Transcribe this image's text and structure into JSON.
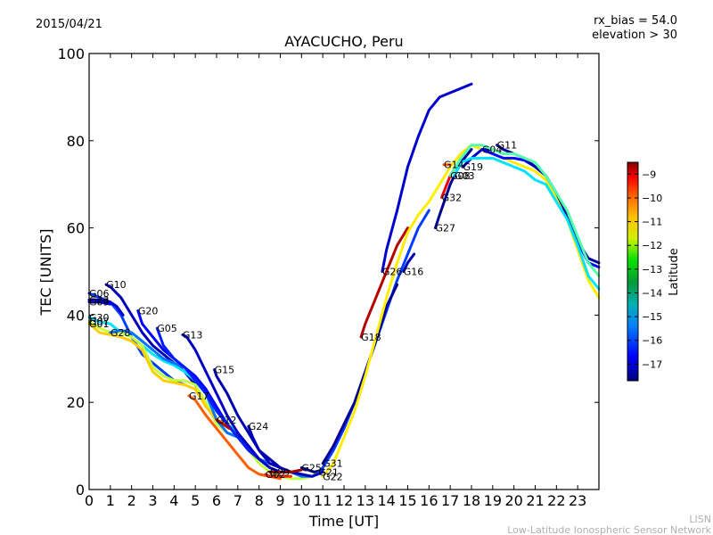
{
  "chart_data": {
    "type": "line",
    "title": "AYACUCHO, Peru",
    "date": "2015/04/21",
    "annotations": [
      "rx_bias = 54.0",
      "elevation > 30"
    ],
    "xlabel": "Time [UT]",
    "ylabel": "TEC [UNITS]",
    "xlim": [
      0,
      24
    ],
    "ylim": [
      0,
      100
    ],
    "xticks": [
      "0",
      "1",
      "2",
      "3",
      "4",
      "5",
      "6",
      "7",
      "8",
      "9",
      "10",
      "11",
      "12",
      "13",
      "14",
      "15",
      "16",
      "17",
      "18",
      "19",
      "20",
      "21",
      "22",
      "23"
    ],
    "yticks": [
      "0",
      "20",
      "40",
      "60",
      "80",
      "100"
    ],
    "grid": false,
    "colorbar": {
      "label": "Latitude",
      "range": [
        -17.7,
        -8.5
      ],
      "ticks": [
        "-9",
        "-10",
        "-11",
        "-12",
        "-13",
        "-14",
        "-15",
        "-16",
        "-17"
      ],
      "colormap": "jet"
    },
    "series": [
      {
        "name": "G06",
        "lat": -16.0,
        "x": [
          0,
          0.5,
          1,
          1.5,
          2,
          2.5,
          3,
          3.5,
          4,
          4.5
        ],
        "y": [
          45,
          44,
          43,
          40,
          35,
          31,
          29,
          27,
          25,
          24
        ]
      },
      {
        "name": "G10",
        "lat": -17.2,
        "x": [
          0.8,
          1,
          1.5,
          2,
          2.5,
          3,
          3.5,
          4,
          4.5,
          5,
          5.5
        ],
        "y": [
          47,
          46.5,
          44,
          40,
          36,
          33,
          31,
          29,
          27,
          24,
          19
        ]
      },
      {
        "name": "G23",
        "lat": -17.0,
        "x": [
          0,
          0.5,
          1,
          1.3,
          1.6
        ],
        "y": [
          43.5,
          43.5,
          43,
          42,
          40
        ]
      },
      {
        "name": "G09",
        "lat": -16.5,
        "x": [
          0,
          0.5,
          1
        ],
        "y": [
          43,
          43,
          42.5
        ]
      },
      {
        "name": "G30",
        "lat": -14.5,
        "x": [
          0,
          0.5,
          1,
          1.5,
          2,
          2.5,
          3,
          3.5,
          4,
          4.5,
          5,
          5.5,
          6,
          6.5,
          7
        ],
        "y": [
          39.5,
          38.5,
          38,
          36,
          35,
          33,
          31,
          29.5,
          28.5,
          27,
          25,
          22,
          18,
          15,
          13
        ]
      },
      {
        "name": "G07",
        "lat": -12.5,
        "x": [
          0,
          0.5,
          1,
          1.5,
          2,
          2.5,
          3,
          3.5,
          4,
          4.5,
          5,
          5.5,
          6,
          6.5,
          7,
          7.5,
          8,
          8.5,
          9,
          9.5,
          10,
          10.5,
          11
        ],
        "y": [
          38.5,
          37,
          36,
          36,
          35,
          33,
          28,
          26,
          25,
          25,
          24,
          20,
          15,
          13,
          12,
          9,
          6,
          4,
          3,
          2.5,
          2.5,
          3,
          5
        ]
      },
      {
        "name": "G01",
        "lat": -11.5,
        "x": [
          0,
          0.5,
          1,
          1.5,
          2,
          2.5,
          3,
          3.5,
          4,
          4.5,
          5,
          5.5,
          6,
          6.5
        ],
        "y": [
          38,
          36,
          35.5,
          35,
          34,
          32,
          27,
          25,
          24.5,
          24,
          23,
          19,
          16,
          15
        ]
      },
      {
        "name": "G28",
        "lat": -15.5,
        "x": [
          1,
          1.5,
          2,
          2.5,
          3,
          3.5,
          4,
          4.5,
          5,
          5.5,
          6,
          6.5,
          7,
          7.5,
          8,
          8.5,
          9,
          9.5,
          10,
          10.5,
          11
        ],
        "y": [
          36,
          36.5,
          36,
          34,
          32,
          30,
          29,
          28,
          26,
          22,
          16,
          13,
          12,
          10,
          7,
          6,
          5,
          4,
          3,
          3,
          4
        ]
      },
      {
        "name": "G20",
        "lat": -16.5,
        "x": [
          2.3,
          2.5,
          3,
          3.5,
          4,
          4.5,
          5,
          5.5,
          6,
          6.5,
          7
        ],
        "y": [
          41,
          38,
          35,
          32,
          30,
          28,
          26,
          23,
          19,
          15,
          12
        ]
      },
      {
        "name": "G05",
        "lat": -16.3,
        "x": [
          3.2,
          3.5,
          4,
          4.5,
          5,
          5.5,
          6,
          6.5,
          7,
          7.5,
          8,
          8.5,
          9
        ],
        "y": [
          37,
          33,
          30,
          28,
          25,
          22,
          18,
          15,
          12,
          9,
          7,
          5,
          4
        ]
      },
      {
        "name": "G13",
        "lat": -17.1,
        "x": [
          4.4,
          4.6,
          5,
          5.5,
          6,
          6.5,
          7,
          7.5,
          8,
          8.5,
          9
        ],
        "y": [
          35.5,
          35,
          32,
          27,
          22,
          17,
          13,
          10,
          7,
          5,
          4
        ]
      },
      {
        "name": "G15",
        "lat": -17.3,
        "x": [
          5.9,
          6,
          6.5,
          7,
          7.5,
          8,
          8.5,
          9,
          9.5,
          10
        ],
        "y": [
          27.5,
          26,
          22,
          17,
          13,
          9,
          7,
          5,
          4,
          3.5
        ]
      },
      {
        "name": "G17",
        "lat": -10.5,
        "x": [
          4.7,
          5,
          5.5,
          6,
          6.5,
          7,
          7.5,
          8,
          8.5,
          9
        ],
        "y": [
          21.5,
          20.5,
          17,
          14,
          11,
          8,
          5,
          3.5,
          3,
          2.5
        ]
      },
      {
        "name": "G12",
        "lat": -9.0,
        "x": [
          6,
          6.3,
          6.6
        ],
        "y": [
          16,
          15,
          14
        ]
      },
      {
        "name": "G24",
        "lat": -17.2,
        "x": [
          7.5,
          7.7,
          8,
          8.5,
          9,
          9.5,
          10,
          10.5,
          11
        ],
        "y": [
          14.5,
          12,
          9,
          6,
          5,
          4,
          3.5,
          3,
          4
        ]
      },
      {
        "name": "G29",
        "lat": -8.8,
        "x": [
          8.5,
          9,
          9.5,
          10
        ],
        "y": [
          4,
          4,
          4,
          4.5
        ]
      },
      {
        "name": "G02",
        "lat": -10.0,
        "x": [
          8.3,
          8.5,
          9,
          9.5
        ],
        "y": [
          3.5,
          3,
          3,
          3
        ]
      },
      {
        "name": "G25",
        "lat": -17.5,
        "x": [
          10,
          10.3,
          10.6,
          11
        ],
        "y": [
          5,
          4.5,
          4,
          4.5
        ]
      },
      {
        "name": "G21",
        "lat": -16.0,
        "x": [
          10.8,
          11,
          11.5,
          12,
          12.5,
          13,
          13.5,
          14,
          14.5,
          15,
          15.5,
          16
        ],
        "y": [
          4,
          5,
          9,
          14,
          20,
          27,
          34,
          41,
          48,
          54,
          60,
          64
        ]
      },
      {
        "name": "G31",
        "lat": -17.5,
        "x": [
          11,
          11.5,
          12,
          12.5,
          13,
          13.5,
          14,
          14.5
        ],
        "y": [
          6,
          10,
          15,
          20,
          27,
          34,
          42,
          47
        ]
      },
      {
        "name": "G18",
        "lat": -9.0,
        "x": [
          12.8,
          13,
          13.5,
          14,
          14.5,
          15
        ],
        "y": [
          35,
          38,
          44,
          50,
          56,
          60
        ]
      },
      {
        "name": "G26",
        "lat": -17.0,
        "x": [
          13.8,
          14,
          14.5,
          15,
          15.5,
          16,
          16.5,
          17,
          17.5,
          18
        ],
        "y": [
          50,
          55,
          64,
          74,
          81,
          87,
          90,
          91,
          92,
          93
        ]
      },
      {
        "name": "G22",
        "lat": -11.8,
        "x": [
          11,
          11.5,
          12,
          12.5,
          13,
          13.5,
          14,
          14.5,
          15,
          15.5,
          16,
          16.5,
          17,
          17.5,
          18,
          18.5,
          19,
          19.5,
          20,
          20.5,
          21,
          21.5,
          22,
          22.5,
          23,
          23.5,
          24
        ],
        "y": [
          3,
          6,
          12,
          18,
          26,
          35,
          44,
          52,
          59,
          63,
          66,
          70,
          74,
          77,
          79,
          78,
          77,
          76,
          75,
          74,
          73,
          71,
          67,
          62,
          55,
          48,
          44
        ]
      },
      {
        "name": "G16",
        "lat": -17.2,
        "x": [
          14.8,
          15,
          15.3
        ],
        "y": [
          50,
          52,
          54
        ]
      },
      {
        "name": "G27",
        "lat": -17.5,
        "x": [
          16.3,
          16.5,
          17,
          17.5,
          18
        ],
        "y": [
          60,
          63,
          70,
          75,
          78
        ]
      },
      {
        "name": "G32",
        "lat": -9.5,
        "x": [
          16.6,
          17,
          17.5
        ],
        "y": [
          67,
          72,
          76
        ]
      },
      {
        "name": "G14",
        "lat": -10.5,
        "x": [
          16.7,
          17
        ],
        "y": [
          74.5,
          74.5
        ]
      },
      {
        "name": "G19",
        "lat": -17.0,
        "x": [
          17.6,
          18,
          18.5,
          19
        ],
        "y": [
          74,
          76,
          78,
          78
        ]
      },
      {
        "name": "G04",
        "lat": -16.5,
        "x": [
          18.5,
          19,
          19.5,
          20,
          20.5,
          21,
          21.5,
          22,
          22.5,
          23,
          23.5,
          24
        ],
        "y": [
          78,
          77,
          76,
          76,
          75.5,
          74,
          72,
          68,
          63,
          57,
          52,
          51
        ]
      },
      {
        "name": "G11",
        "lat": -17.4,
        "x": [
          19.2,
          19.5,
          20,
          20.5,
          21,
          21.5,
          22,
          22.5,
          23,
          23.5,
          24
        ],
        "y": [
          79,
          78,
          77,
          76,
          74,
          72,
          68,
          63,
          57,
          53,
          52
        ]
      },
      {
        "name": "G08",
        "lat": -13.5,
        "x": [
          17,
          17.5,
          18,
          18.5,
          19,
          19.5,
          20,
          20.5,
          21,
          21.5,
          22,
          22.5,
          23,
          23.5,
          24
        ],
        "y": [
          72,
          76,
          79,
          79,
          78,
          77,
          77,
          76,
          75,
          72,
          68,
          64,
          58,
          52,
          49
        ]
      },
      {
        "name": "G03",
        "lat": -14.5,
        "x": [
          17.2,
          17.5,
          18,
          18.5,
          19,
          19.5,
          20,
          20.5,
          21,
          21.5,
          22,
          22.5,
          23,
          23.5,
          24
        ],
        "y": [
          72,
          75,
          76,
          76,
          76,
          75,
          74,
          73,
          71,
          70,
          66,
          62,
          56,
          49,
          46
        ]
      }
    ]
  },
  "footer": {
    "brand": "LISN",
    "subtitle": "Low-Latitude Ionospheric Sensor Network"
  }
}
